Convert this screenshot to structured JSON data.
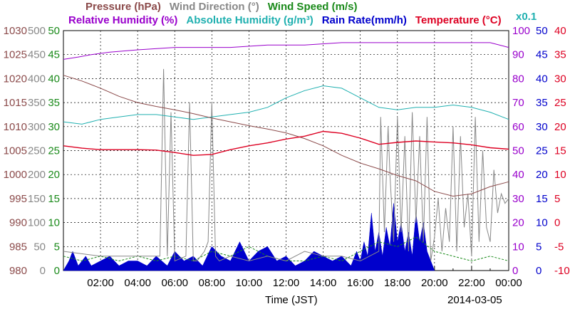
{
  "header": {
    "row1": [
      {
        "text": "Pressure (hPa)",
        "color": "#8b4a4a"
      },
      {
        "text": "Wind Direction (°)",
        "color": "#888888"
      },
      {
        "text": "Wind Speed (m/s)",
        "color": "#1a8a1a"
      }
    ],
    "row2": [
      {
        "text": "Relative Humidity (%)",
        "color": "#9900cc"
      },
      {
        "text": "Absolute Humidity (g/m³)",
        "color": "#20b0b0"
      },
      {
        "text": "Rain Rate(mm/h)",
        "color": "#0000cc"
      },
      {
        "text": "Temperature (°C)",
        "color": "#dd0022"
      }
    ],
    "scale_note": {
      "text": "x0.1",
      "color": "#20b0b0"
    }
  },
  "footer": {
    "xlabel": "Time (JST)",
    "date": "2014-03-05"
  },
  "chart_data": {
    "type": "line",
    "x_ticks": [
      "02:00",
      "04:00",
      "06:00",
      "08:00",
      "10:00",
      "12:00",
      "14:00",
      "16:00",
      "18:00",
      "20:00",
      "22:00",
      "00:00"
    ],
    "xlim_hours": [
      0,
      24
    ],
    "grid": true,
    "left_axes": [
      {
        "name": "Pressure (hPa)",
        "color": "#8b4a4a",
        "ticks": [
          "1030",
          "1025",
          "1020",
          "1015",
          "1010",
          "1005",
          "1000",
          "995",
          "990",
          "985",
          "980"
        ],
        "ylim": [
          980,
          1030
        ]
      },
      {
        "name": "Wind Direction (°)",
        "color": "#888888",
        "ticks": [
          "500",
          "450",
          "400",
          "350",
          "300",
          "250",
          "200",
          "150",
          "100",
          "50",
          "0"
        ],
        "ylim": [
          0,
          500
        ]
      },
      {
        "name": "Wind Speed (m/s)",
        "color": "#1a8a1a",
        "ticks": [
          "50",
          "45",
          "40",
          "35",
          "30",
          "25",
          "20",
          "15",
          "10",
          "5",
          "0"
        ],
        "ylim": [
          0,
          50
        ]
      }
    ],
    "right_axes": [
      {
        "name": "Relative Humidity (%)",
        "color": "#9900cc",
        "ticks": [
          "100",
          "90",
          "80",
          "70",
          "60",
          "50",
          "40",
          "30",
          "20",
          "10",
          "0"
        ],
        "ylim": [
          0,
          100
        ]
      },
      {
        "name": "Rain Rate(mm/h)",
        "color": "#0000cc",
        "ticks": [
          "50",
          "45",
          "40",
          "35",
          "30",
          "25",
          "20",
          "15",
          "10",
          "5",
          "0"
        ],
        "ylim": [
          0,
          50
        ]
      },
      {
        "name": "Temperature (°C)",
        "color": "#dd0022",
        "ticks": [
          "40",
          "35",
          "30",
          "25",
          "20",
          "15",
          "10",
          "5",
          "0",
          "-5",
          "-10"
        ],
        "ylim": [
          -10,
          40
        ]
      }
    ],
    "series": [
      {
        "name": "Pressure (hPa)",
        "color": "#8b4a4a",
        "unit_axis": "pressure",
        "x": [
          0,
          1,
          2,
          3,
          4,
          5,
          6,
          7,
          8,
          9,
          10,
          11,
          12,
          13,
          14,
          15,
          16,
          17,
          18,
          19,
          20,
          21,
          22,
          23,
          24
        ],
        "y": [
          1020.7,
          1019.5,
          1018,
          1016.3,
          1015,
          1014.2,
          1013.5,
          1012.7,
          1011.8,
          1011,
          1010.2,
          1009.5,
          1008.7,
          1007.5,
          1006,
          1004,
          1002.4,
          1001.2,
          999.8,
          998.7,
          996.5,
          995.5,
          996,
          997.5,
          998.5
        ]
      },
      {
        "name": "Relative Humidity (%)",
        "color": "#9900cc",
        "unit_axis": "rh",
        "x": [
          0,
          0.8,
          1.5,
          2.5,
          4,
          6,
          9,
          11,
          13,
          15,
          17,
          19,
          21,
          23,
          24
        ],
        "y": [
          88,
          89,
          90,
          91,
          92,
          93,
          93,
          94,
          94,
          95,
          95,
          95,
          95,
          95,
          93
        ]
      },
      {
        "name": "Absolute Humidity (g/m³)",
        "color": "#20b0b0",
        "unit_axis": "rh",
        "scale": "x0.1",
        "x": [
          0,
          1,
          2,
          3,
          4,
          5,
          6,
          7,
          8,
          9,
          10,
          11,
          12,
          13,
          14,
          15,
          16,
          17,
          18,
          19,
          20,
          21,
          22,
          23,
          24
        ],
        "y": [
          62,
          61,
          63,
          64,
          65,
          65,
          64,
          63,
          64,
          65,
          66,
          68,
          72,
          75,
          77,
          76,
          72,
          68,
          67,
          68,
          68,
          69,
          68,
          66,
          63
        ]
      },
      {
        "name": "Temperature (°C)",
        "color": "#dd0022",
        "unit_axis": "temp",
        "x": [
          0,
          1,
          2,
          3,
          4,
          5,
          6,
          7,
          8,
          9,
          10,
          11,
          12,
          13,
          14,
          15,
          16,
          17,
          18,
          19,
          20,
          21,
          22,
          23,
          24
        ],
        "y": [
          16,
          15.5,
          15.2,
          15.2,
          15.2,
          15.1,
          14.6,
          14,
          14.2,
          15.2,
          16,
          16.6,
          17.4,
          18,
          19,
          18.6,
          17.6,
          16.3,
          16.7,
          17,
          16.8,
          16.6,
          16.2,
          15.6,
          15.3
        ]
      },
      {
        "name": "Wind Direction (°)",
        "color": "#888888",
        "unit_axis": "wd",
        "x": [
          0,
          2,
          4,
          5.2,
          5.4,
          5.6,
          5.8,
          6,
          6.6,
          6.8,
          7,
          7.2,
          7.6,
          7.8,
          8,
          8.2,
          8.4,
          9,
          10,
          11,
          12,
          13,
          14,
          15,
          16,
          17,
          17.1,
          17.3,
          17.5,
          17.6,
          17.8,
          18,
          18.2,
          18.4,
          18.6,
          18.8,
          19,
          19.2,
          19.4,
          19.6,
          19.8,
          20,
          20.2,
          20.4,
          20.6,
          20.8,
          21,
          21.2,
          21.4,
          21.6,
          21.8,
          22,
          22.2,
          22.4,
          22.6,
          22.8,
          23,
          23.2,
          23.4,
          23.6,
          23.8,
          24
        ],
        "y": [
          40,
          30,
          30,
          30,
          420,
          30,
          330,
          20,
          30,
          350,
          20,
          20,
          40,
          60,
          350,
          30,
          20,
          30,
          20,
          30,
          20,
          40,
          30,
          30,
          20,
          40,
          320,
          80,
          300,
          200,
          60,
          320,
          80,
          280,
          40,
          330,
          100,
          280,
          60,
          320,
          20,
          70,
          150,
          40,
          130,
          60,
          300,
          40,
          280,
          90,
          160,
          30,
          320,
          60,
          250,
          90,
          60,
          210,
          120,
          160,
          140,
          150
        ]
      },
      {
        "name": "Wind Speed (m/s)",
        "color": "#1a8a1a",
        "unit_axis": "ws",
        "x": [
          0,
          1,
          2,
          3,
          4,
          5,
          6,
          7,
          8,
          9,
          10,
          11,
          12,
          13,
          14,
          15,
          16,
          17,
          18,
          19,
          20,
          21,
          22,
          23,
          24
        ],
        "y": [
          3,
          2,
          3,
          2,
          3,
          2,
          3,
          2,
          4,
          3,
          5,
          3,
          2,
          2,
          3,
          2,
          4,
          6,
          5,
          7,
          4,
          3,
          2,
          3,
          2
        ],
        "style": "dashed"
      },
      {
        "name": "Rain Rate(mm/h)",
        "color": "#0000cc",
        "unit_axis": "rain",
        "type": "area",
        "x": [
          0,
          0.3,
          0.5,
          0.8,
          1.2,
          1.5,
          2,
          2.5,
          3,
          3.5,
          4,
          4.5,
          5,
          5.3,
          5.6,
          6,
          6.5,
          7,
          7.5,
          8,
          8.5,
          9,
          9.5,
          10,
          10.5,
          11,
          11.5,
          12,
          12.5,
          13,
          13.5,
          14,
          14.5,
          15,
          15.5,
          15.8,
          16,
          16.2,
          16.4,
          16.6,
          16.8,
          17,
          17.2,
          17.4,
          17.6,
          17.8,
          18,
          18.2,
          18.4,
          18.6,
          18.8,
          19,
          19.2,
          19.4,
          19.6,
          19.8,
          20
        ],
        "y": [
          0,
          2,
          4,
          1,
          3,
          1,
          2,
          3,
          1,
          2,
          2,
          1,
          3,
          2,
          1,
          4,
          2,
          3,
          1,
          5,
          3,
          2,
          6,
          2,
          4,
          5,
          2,
          3,
          1,
          2,
          4,
          3,
          2,
          3,
          1,
          4,
          2,
          6,
          3,
          12,
          4,
          8,
          3,
          9,
          5,
          14,
          6,
          10,
          4,
          8,
          3,
          12,
          6,
          10,
          4,
          2,
          0
        ]
      }
    ]
  }
}
